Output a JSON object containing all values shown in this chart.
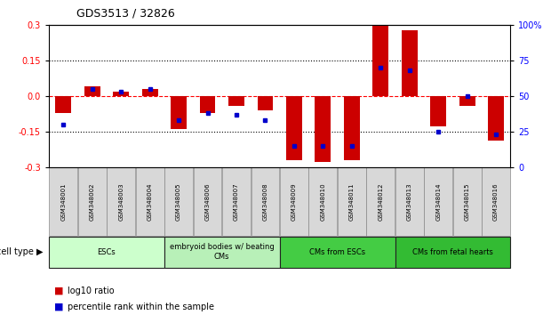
{
  "title": "GDS3513 / 32826",
  "samples": [
    "GSM348001",
    "GSM348002",
    "GSM348003",
    "GSM348004",
    "GSM348005",
    "GSM348006",
    "GSM348007",
    "GSM348008",
    "GSM348009",
    "GSM348010",
    "GSM348011",
    "GSM348012",
    "GSM348013",
    "GSM348014",
    "GSM348015",
    "GSM348016"
  ],
  "log10_ratio": [
    -0.07,
    0.04,
    0.02,
    0.03,
    -0.14,
    -0.07,
    -0.04,
    -0.06,
    -0.27,
    -0.28,
    -0.27,
    0.3,
    0.28,
    -0.13,
    -0.04,
    -0.19
  ],
  "percentile_rank": [
    30,
    55,
    53,
    55,
    33,
    38,
    37,
    33,
    15,
    15,
    15,
    70,
    68,
    25,
    50,
    23
  ],
  "bar_color": "#cc0000",
  "dot_color": "#0000cc",
  "ylim": [
    -0.3,
    0.3
  ],
  "yticks_left": [
    -0.3,
    -0.15,
    0.0,
    0.15,
    0.3
  ],
  "yticks_right": [
    0,
    25,
    50,
    75,
    100
  ],
  "hlines_dotted": [
    -0.15,
    0.15
  ],
  "hline_dashed": 0.0,
  "cell_type_groups": [
    {
      "label": "ESCs",
      "start": 0,
      "end": 3,
      "color": "#ccffcc"
    },
    {
      "label": "embryoid bodies w/ beating\nCMs",
      "start": 4,
      "end": 7,
      "color": "#b8f0b8"
    },
    {
      "label": "CMs from ESCs",
      "start": 8,
      "end": 11,
      "color": "#44cc44"
    },
    {
      "label": "CMs from fetal hearts",
      "start": 12,
      "end": 15,
      "color": "#33bb33"
    }
  ],
  "legend_red_label": "log10 ratio",
  "legend_blue_label": "percentile rank within the sample",
  "cell_type_label": "cell type"
}
